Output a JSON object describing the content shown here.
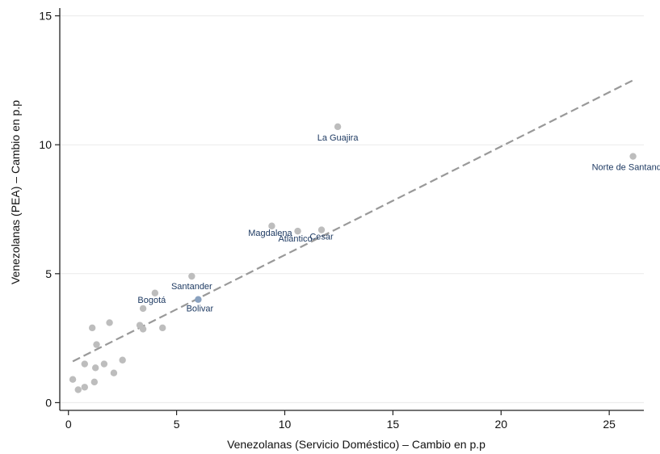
{
  "chart_data": {
    "type": "scatter",
    "title": "",
    "xlabel": "Venezolanas (Servicio Doméstico) – Cambio en p.p",
    "ylabel": "Venezolanas (PEA) – Cambio en p.p",
    "xlim": [
      -0.4,
      26.6
    ],
    "ylim": [
      -0.3,
      15.3
    ],
    "xticks": [
      0,
      5,
      10,
      15,
      20,
      25
    ],
    "yticks": [
      0,
      5,
      10,
      15
    ],
    "grid": "horizontal",
    "colors": {
      "point": "#bdbdbd",
      "highlight_point": "#8aa2c0",
      "label": "#1f3b63",
      "fit_line": "#999999",
      "fit_line_dash": "#7a8fa8",
      "grid": "#eaeaea",
      "axis": "#222222"
    },
    "points": [
      {
        "x": 0.2,
        "y": 0.9,
        "label": ""
      },
      {
        "x": 0.45,
        "y": 0.5,
        "label": ""
      },
      {
        "x": 0.75,
        "y": 0.6,
        "label": ""
      },
      {
        "x": 0.75,
        "y": 1.5,
        "label": ""
      },
      {
        "x": 1.1,
        "y": 2.9,
        "label": ""
      },
      {
        "x": 1.2,
        "y": 0.8,
        "label": ""
      },
      {
        "x": 1.25,
        "y": 1.35,
        "label": ""
      },
      {
        "x": 1.3,
        "y": 2.25,
        "label": ""
      },
      {
        "x": 1.65,
        "y": 1.5,
        "label": ""
      },
      {
        "x": 1.9,
        "y": 3.1,
        "label": ""
      },
      {
        "x": 2.1,
        "y": 1.15,
        "label": ""
      },
      {
        "x": 2.5,
        "y": 1.65,
        "label": ""
      },
      {
        "x": 3.3,
        "y": 3.0,
        "label": ""
      },
      {
        "x": 3.45,
        "y": 2.85,
        "label": ""
      },
      {
        "x": 3.45,
        "y": 3.65,
        "label": ""
      },
      {
        "x": 4.0,
        "y": 4.25,
        "label": "Bogotá"
      },
      {
        "x": 4.35,
        "y": 2.9,
        "label": ""
      },
      {
        "x": 5.7,
        "y": 4.9,
        "label": "Santander"
      },
      {
        "x": 6.0,
        "y": 4.0,
        "label": "Bolivar",
        "highlight": true
      },
      {
        "x": 9.4,
        "y": 6.85,
        "label": "Magdalena"
      },
      {
        "x": 10.6,
        "y": 6.65,
        "label": "Atlántico"
      },
      {
        "x": 11.7,
        "y": 6.7,
        "label": "Cesar"
      },
      {
        "x": 12.45,
        "y": 10.7,
        "label": "La Guajira"
      },
      {
        "x": 26.1,
        "y": 9.55,
        "label": "Norte de Santander"
      }
    ],
    "fit_line": {
      "x": [
        0.2,
        26.1
      ],
      "y": [
        1.6,
        12.5
      ]
    }
  }
}
